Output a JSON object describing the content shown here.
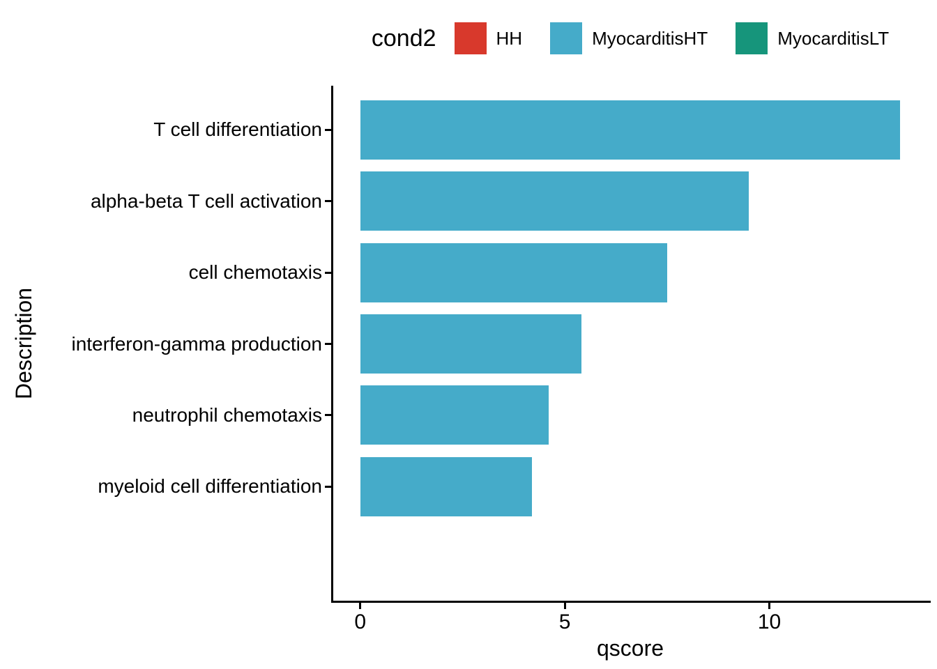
{
  "chart_data": {
    "type": "bar",
    "orientation": "horizontal",
    "title": "",
    "xlabel": "qscore",
    "ylabel": "Description",
    "legend_title": "cond2",
    "legend_position": "top",
    "legend": [
      {
        "label": "HH",
        "color": "#D8392C"
      },
      {
        "label": "MyocarditisHT",
        "color": "#45ABC9"
      },
      {
        "label": "MyocarditisLT",
        "color": "#16957B"
      }
    ],
    "bar_fill_legend_key": "MyocarditisHT",
    "bar_color": "#45ABC9",
    "categories": [
      "T cell differentiation",
      "alpha-beta T cell activation",
      "cell chemotaxis",
      "interferon-gamma production",
      "neutrophil chemotaxis",
      "myeloid cell differentiation"
    ],
    "values": [
      13.2,
      9.5,
      7.5,
      5.4,
      4.6,
      4.2
    ],
    "xticks": [
      0,
      5,
      10
    ],
    "xlim": [
      -0.66,
      13.86
    ],
    "grid": false,
    "axis_color": "#000000",
    "text_color": "#000000",
    "background_color": "#FFFFFF"
  }
}
